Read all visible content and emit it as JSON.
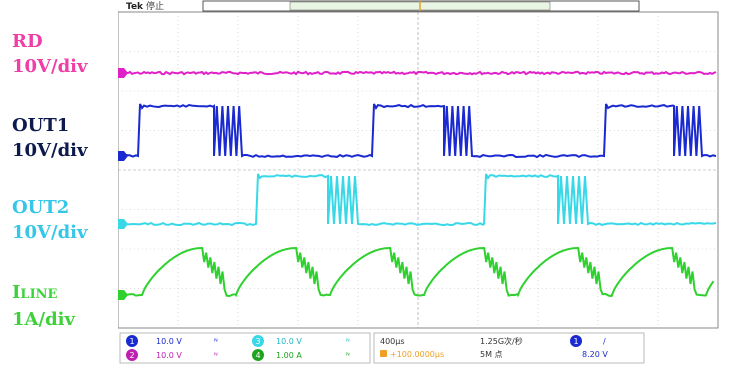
{
  "labels": {
    "rd": {
      "name": "RD",
      "scale": "10V/div"
    },
    "out1": {
      "name": "OUT1",
      "scale": "10V/div"
    },
    "out2": {
      "name": "OUT2",
      "scale": "10V/div"
    },
    "iline": {
      "name": "I",
      "name_sub": "LINE",
      "scale": "1A/div"
    }
  },
  "scope": {
    "brand": "Tek",
    "state": "停止",
    "trigger_marker": "T",
    "colors": {
      "rd": "#e020c8",
      "out1": "#1a2ad0",
      "out2": "#38d8e8",
      "iline": "#2ed12e",
      "grid": "#bdbdbd"
    }
  },
  "status_bar": {
    "ch1": {
      "num": "1",
      "scale": "10.0 V",
      "coupling": "ᴺ"
    },
    "ch2": {
      "num": "2",
      "scale": "10.0 V",
      "coupling": "ᴺ"
    },
    "ch3": {
      "num": "3",
      "scale": "10.0 V",
      "coupling": "ᴺ"
    },
    "ch4": {
      "num": "4",
      "scale": "1.00 A",
      "coupling": "ᴺ"
    },
    "timebase": "400μs",
    "delay": "+100.0000μs",
    "sample_rate": "1.25G次/秒",
    "record_length": "5M 点",
    "trigger_channel": "1",
    "trigger_slope": "/",
    "trigger_level": "8.20 V"
  },
  "chart_data": {
    "type": "line",
    "title": "",
    "x_divisions": 10,
    "y_divisions": 8,
    "timebase_per_div": "400μs",
    "series": [
      {
        "name": "RD",
        "scale": "10V/div",
        "shape": "flat ~0 V with small ripple"
      },
      {
        "name": "OUT1",
        "scale": "10V/div",
        "shape": "square wave, high ~2.2 div, period ~4.8 div, high phase ~1.4 div, ringing burst on falling edge"
      },
      {
        "name": "OUT2",
        "scale": "10V/div",
        "shape": "square wave complementary to OUT1, high ~2.0 div, ringing bursts on edges"
      },
      {
        "name": "ILINE",
        "scale": "1A/div",
        "shape": "rectified sine hump ~2.0 div peak, period ~2.0 div, ringing on falling edge"
      }
    ]
  }
}
